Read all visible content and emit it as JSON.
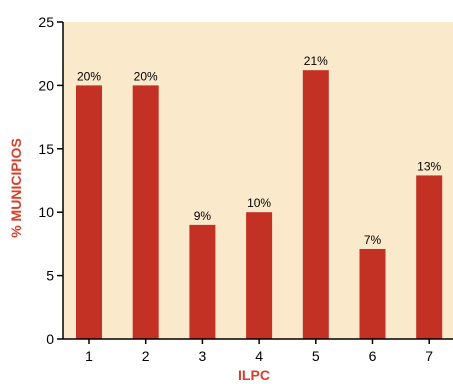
{
  "colors": {
    "plot_background": "#fbe9cc",
    "bar": "#c33124",
    "axis": "#000000",
    "axis_title": "#d6402b"
  },
  "chart_data": {
    "type": "bar",
    "categories": [
      "1",
      "2",
      "3",
      "4",
      "5",
      "6",
      "7"
    ],
    "values": [
      20,
      20,
      9,
      10,
      21.2,
      7.1,
      12.9
    ],
    "data_labels": [
      "20%",
      "20%",
      "9%",
      "10%",
      "21%",
      "7%",
      "13%"
    ],
    "title": "",
    "xlabel": "ILPC",
    "ylabel": "% MUNICIPIOS",
    "ylim": [
      0,
      25
    ],
    "yticks": [
      "0",
      "5",
      "10",
      "15",
      "20",
      "25"
    ],
    "grid": false,
    "legend": "none"
  }
}
